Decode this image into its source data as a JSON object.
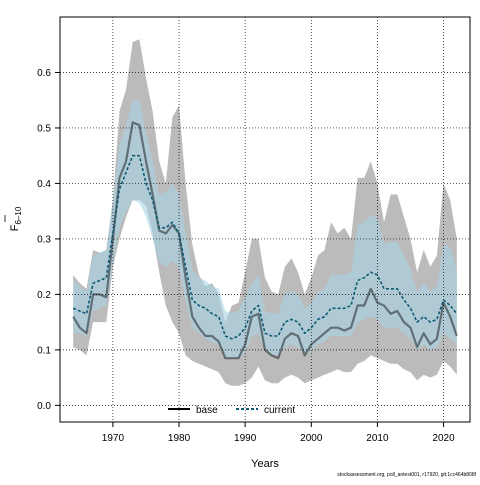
{
  "chart_data": {
    "type": "line",
    "xlabel": "Years",
    "ylabel_main": "F",
    "ylabel_sub": "6–10",
    "xlim": [
      1962,
      2024
    ],
    "ylim": [
      -0.03,
      0.7
    ],
    "x_ticks": [
      1970,
      1980,
      1990,
      2000,
      2010,
      2020
    ],
    "y_ticks": [
      "0.0",
      "0.1",
      "0.2",
      "0.3",
      "0.4",
      "0.5",
      "0.6"
    ],
    "y_tick_values": [
      0,
      0.1,
      0.2,
      0.3,
      0.4,
      0.5,
      0.6
    ],
    "grid": true,
    "legend_position": "bottom-center",
    "series": [
      {
        "name": "base",
        "color": "#000000",
        "x": [
          1964,
          1965,
          1966,
          1967,
          1968,
          1969,
          1970,
          1971,
          1972,
          1973,
          1974,
          1975,
          1976,
          1977,
          1978,
          1979,
          1980,
          1981,
          1982,
          1983,
          1984,
          1985,
          1986,
          1987,
          1988,
          1989,
          1990,
          1991,
          1992,
          1993,
          1994,
          1995,
          1996,
          1997,
          1998,
          1999,
          2000,
          2001,
          2002,
          2003,
          2004,
          2005,
          2006,
          2007,
          2008,
          2009,
          2010,
          2011,
          2012,
          2013,
          2014,
          2015,
          2016,
          2017,
          2018,
          2019,
          2020,
          2021,
          2022
        ],
        "values": [
          0.16,
          0.14,
          0.13,
          0.2,
          0.2,
          0.195,
          0.3,
          0.41,
          0.44,
          0.51,
          0.505,
          0.44,
          0.38,
          0.315,
          0.31,
          0.325,
          0.31,
          0.23,
          0.16,
          0.14,
          0.125,
          0.125,
          0.115,
          0.085,
          0.085,
          0.085,
          0.11,
          0.16,
          0.165,
          0.1,
          0.09,
          0.085,
          0.12,
          0.13,
          0.125,
          0.09,
          0.11,
          0.12,
          0.13,
          0.14,
          0.14,
          0.135,
          0.14,
          0.18,
          0.18,
          0.21,
          0.185,
          0.18,
          0.165,
          0.17,
          0.15,
          0.14,
          0.105,
          0.13,
          0.11,
          0.12,
          0.185,
          0.16,
          0.125
        ]
      },
      {
        "name": "current",
        "color": "#0e5a73",
        "x": [
          1964,
          1965,
          1966,
          1967,
          1968,
          1969,
          1970,
          1971,
          1972,
          1973,
          1974,
          1975,
          1976,
          1977,
          1978,
          1979,
          1980,
          1981,
          1982,
          1983,
          1984,
          1985,
          1986,
          1987,
          1988,
          1989,
          1990,
          1991,
          1992,
          1993,
          1994,
          1995,
          1996,
          1997,
          1998,
          1999,
          2000,
          2001,
          2002,
          2003,
          2004,
          2005,
          2006,
          2007,
          2008,
          2009,
          2010,
          2011,
          2012,
          2013,
          2014,
          2015,
          2016,
          2017,
          2018,
          2019,
          2020,
          2021,
          2022
        ],
        "values": [
          0.175,
          0.17,
          0.165,
          0.22,
          0.225,
          0.23,
          0.31,
          0.39,
          0.42,
          0.45,
          0.45,
          0.4,
          0.37,
          0.32,
          0.32,
          0.33,
          0.31,
          0.25,
          0.19,
          0.18,
          0.175,
          0.165,
          0.16,
          0.125,
          0.12,
          0.125,
          0.14,
          0.17,
          0.18,
          0.13,
          0.125,
          0.125,
          0.15,
          0.155,
          0.15,
          0.13,
          0.14,
          0.155,
          0.16,
          0.175,
          0.175,
          0.175,
          0.18,
          0.225,
          0.23,
          0.24,
          0.235,
          0.21,
          0.21,
          0.21,
          0.19,
          0.175,
          0.15,
          0.16,
          0.15,
          0.155,
          0.19,
          0.18,
          0.165
        ]
      }
    ],
    "bands": [
      {
        "name": "base",
        "color": "#9e9e9e",
        "x": [
          1964,
          1965,
          1966,
          1967,
          1968,
          1969,
          1970,
          1971,
          1972,
          1973,
          1974,
          1975,
          1976,
          1977,
          1978,
          1979,
          1980,
          1981,
          1982,
          1983,
          1984,
          1985,
          1986,
          1987,
          1988,
          1989,
          1990,
          1991,
          1992,
          1993,
          1994,
          1995,
          1996,
          1997,
          1998,
          1999,
          2000,
          2001,
          2002,
          2003,
          2004,
          2005,
          2006,
          2007,
          2008,
          2009,
          2010,
          2011,
          2012,
          2013,
          2014,
          2015,
          2016,
          2017,
          2018,
          2019,
          2020,
          2021,
          2022
        ],
        "lower": [
          0.105,
          0.1,
          0.09,
          0.15,
          0.15,
          0.15,
          0.25,
          0.3,
          0.34,
          0.37,
          0.37,
          0.36,
          0.31,
          0.24,
          0.18,
          0.15,
          0.13,
          0.09,
          0.08,
          0.075,
          0.07,
          0.065,
          0.06,
          0.04,
          0.035,
          0.035,
          0.04,
          0.05,
          0.07,
          0.045,
          0.04,
          0.04,
          0.05,
          0.055,
          0.05,
          0.04,
          0.045,
          0.05,
          0.055,
          0.06,
          0.065,
          0.06,
          0.06,
          0.075,
          0.08,
          0.09,
          0.085,
          0.08,
          0.075,
          0.075,
          0.065,
          0.06,
          0.045,
          0.055,
          0.05,
          0.055,
          0.08,
          0.07,
          0.055
        ],
        "upper": [
          0.235,
          0.22,
          0.21,
          0.28,
          0.275,
          0.28,
          0.37,
          0.53,
          0.57,
          0.655,
          0.66,
          0.59,
          0.53,
          0.44,
          0.4,
          0.52,
          0.54,
          0.4,
          0.29,
          0.235,
          0.215,
          0.22,
          0.2,
          0.15,
          0.18,
          0.185,
          0.24,
          0.3,
          0.3,
          0.23,
          0.205,
          0.2,
          0.25,
          0.265,
          0.24,
          0.2,
          0.23,
          0.27,
          0.28,
          0.33,
          0.31,
          0.32,
          0.3,
          0.41,
          0.41,
          0.44,
          0.4,
          0.33,
          0.38,
          0.38,
          0.34,
          0.3,
          0.24,
          0.28,
          0.25,
          0.27,
          0.4,
          0.37,
          0.3
        ]
      },
      {
        "name": "current",
        "color": "#a9d3e6",
        "x": [
          1964,
          1965,
          1966,
          1967,
          1968,
          1969,
          1970,
          1971,
          1972,
          1973,
          1974,
          1975,
          1976,
          1977,
          1978,
          1979,
          1980,
          1981,
          1982,
          1983,
          1984,
          1985,
          1986,
          1987,
          1988,
          1989,
          1990,
          1991,
          1992,
          1993,
          1994,
          1995,
          1996,
          1997,
          1998,
          1999,
          2000,
          2001,
          2002,
          2003,
          2004,
          2005,
          2006,
          2007,
          2008,
          2009,
          2010,
          2011,
          2012,
          2013,
          2014,
          2015,
          2016,
          2017,
          2018,
          2019,
          2020,
          2021,
          2022
        ],
        "lower": [
          0.13,
          0.13,
          0.125,
          0.17,
          0.175,
          0.18,
          0.255,
          0.32,
          0.35,
          0.37,
          0.365,
          0.34,
          0.3,
          0.26,
          0.25,
          0.26,
          0.25,
          0.19,
          0.14,
          0.13,
          0.12,
          0.115,
          0.11,
          0.085,
          0.085,
          0.085,
          0.095,
          0.125,
          0.13,
          0.1,
          0.09,
          0.09,
          0.105,
          0.11,
          0.105,
          0.09,
          0.1,
          0.11,
          0.115,
          0.125,
          0.125,
          0.125,
          0.125,
          0.15,
          0.155,
          0.16,
          0.155,
          0.14,
          0.14,
          0.14,
          0.13,
          0.12,
          0.1,
          0.11,
          0.1,
          0.105,
          0.13,
          0.12,
          0.11
        ],
        "upper": [
          0.225,
          0.215,
          0.205,
          0.27,
          0.275,
          0.28,
          0.37,
          0.47,
          0.505,
          0.55,
          0.55,
          0.49,
          0.44,
          0.38,
          0.385,
          0.4,
          0.38,
          0.31,
          0.245,
          0.23,
          0.225,
          0.215,
          0.21,
          0.17,
          0.165,
          0.17,
          0.195,
          0.22,
          0.235,
          0.17,
          0.165,
          0.165,
          0.2,
          0.205,
          0.2,
          0.175,
          0.185,
          0.205,
          0.21,
          0.235,
          0.235,
          0.235,
          0.24,
          0.325,
          0.33,
          0.345,
          0.335,
          0.29,
          0.295,
          0.295,
          0.27,
          0.245,
          0.205,
          0.22,
          0.205,
          0.215,
          0.29,
          0.285,
          0.245
        ]
      }
    ]
  },
  "footer": "stockassessment.org, poll_antest001, r17920, git:1cc464b808f"
}
